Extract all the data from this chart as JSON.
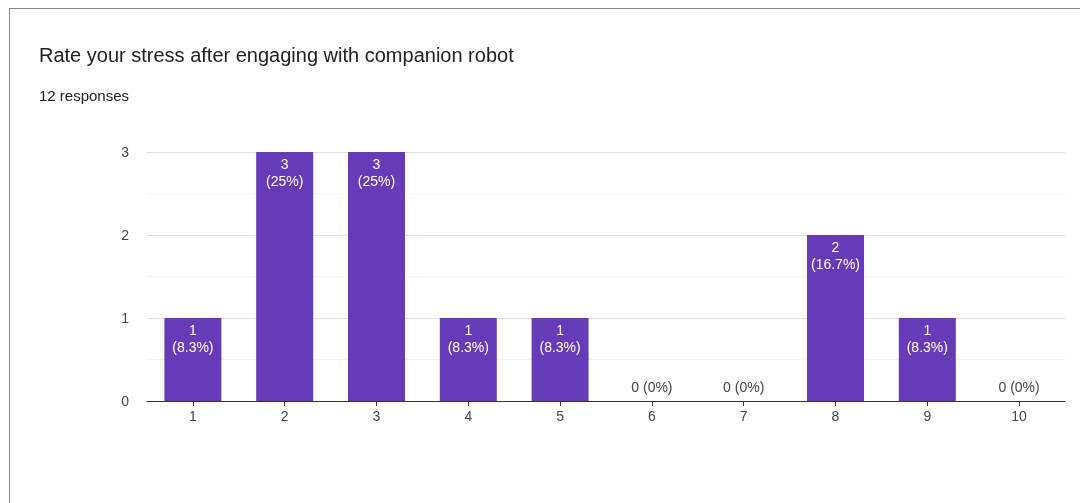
{
  "chart_data": {
    "type": "bar",
    "title": "Rate your stress after engaging with companion robot",
    "subtitle": "12 responses",
    "categories": [
      "1",
      "2",
      "3",
      "4",
      "5",
      "6",
      "7",
      "8",
      "9",
      "10"
    ],
    "values": [
      1,
      3,
      3,
      1,
      1,
      0,
      0,
      2,
      1,
      0
    ],
    "value_labels": [
      "1 (8.3%)",
      "3 (25%)",
      "3 (25%)",
      "1 (8.3%)",
      "1 (8.3%)",
      "0 (0%)",
      "0 (0%)",
      "2 (16.7%)",
      "1 (8.3%)",
      "0 (0%)"
    ],
    "color": "#673ab7",
    "ylim": [
      0,
      3
    ],
    "yticks": [
      0,
      1,
      2,
      3
    ],
    "grid": "y"
  }
}
